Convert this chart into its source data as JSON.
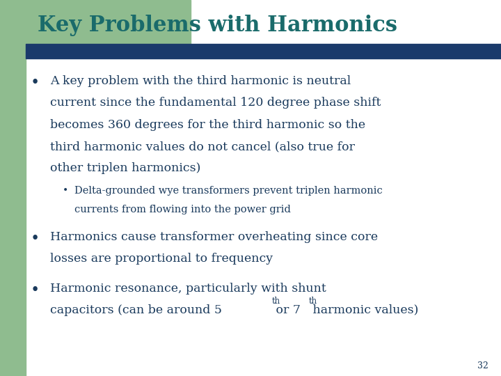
{
  "title": "Key Problems with Harmonics",
  "title_color": "#1a6b6b",
  "title_fontsize": 22,
  "bg_color": "#ffffff",
  "left_bar_color": "#8fbc8f",
  "header_bar_color": "#1a3a6b",
  "text_color": "#1a3a5c",
  "bullet1_lines": [
    "A key problem with the third harmonic is neutral",
    "current since the fundamental 120 degree phase shift",
    "becomes 360 degrees for the third harmonic so the",
    "third harmonic values do not cancel (also true for",
    "other triplen harmonics)"
  ],
  "sub_bullet_lines": [
    "Delta-grounded wye transformers prevent triplen harmonic",
    "currents from flowing into the power grid"
  ],
  "bullet2_lines": [
    "Harmonics cause transformer overheating since core",
    "losses are proportional to frequency"
  ],
  "bullet3_line1": "Harmonic resonance, particularly with shunt",
  "bullet3_line2_pre1": "capacitors (can be around 5",
  "bullet3_sup1": "th",
  "bullet3_line2_pre2": " or 7",
  "bullet3_sup2": "th",
  "bullet3_line2_post": " harmonic values)",
  "page_number": "32",
  "font_family": "serif"
}
